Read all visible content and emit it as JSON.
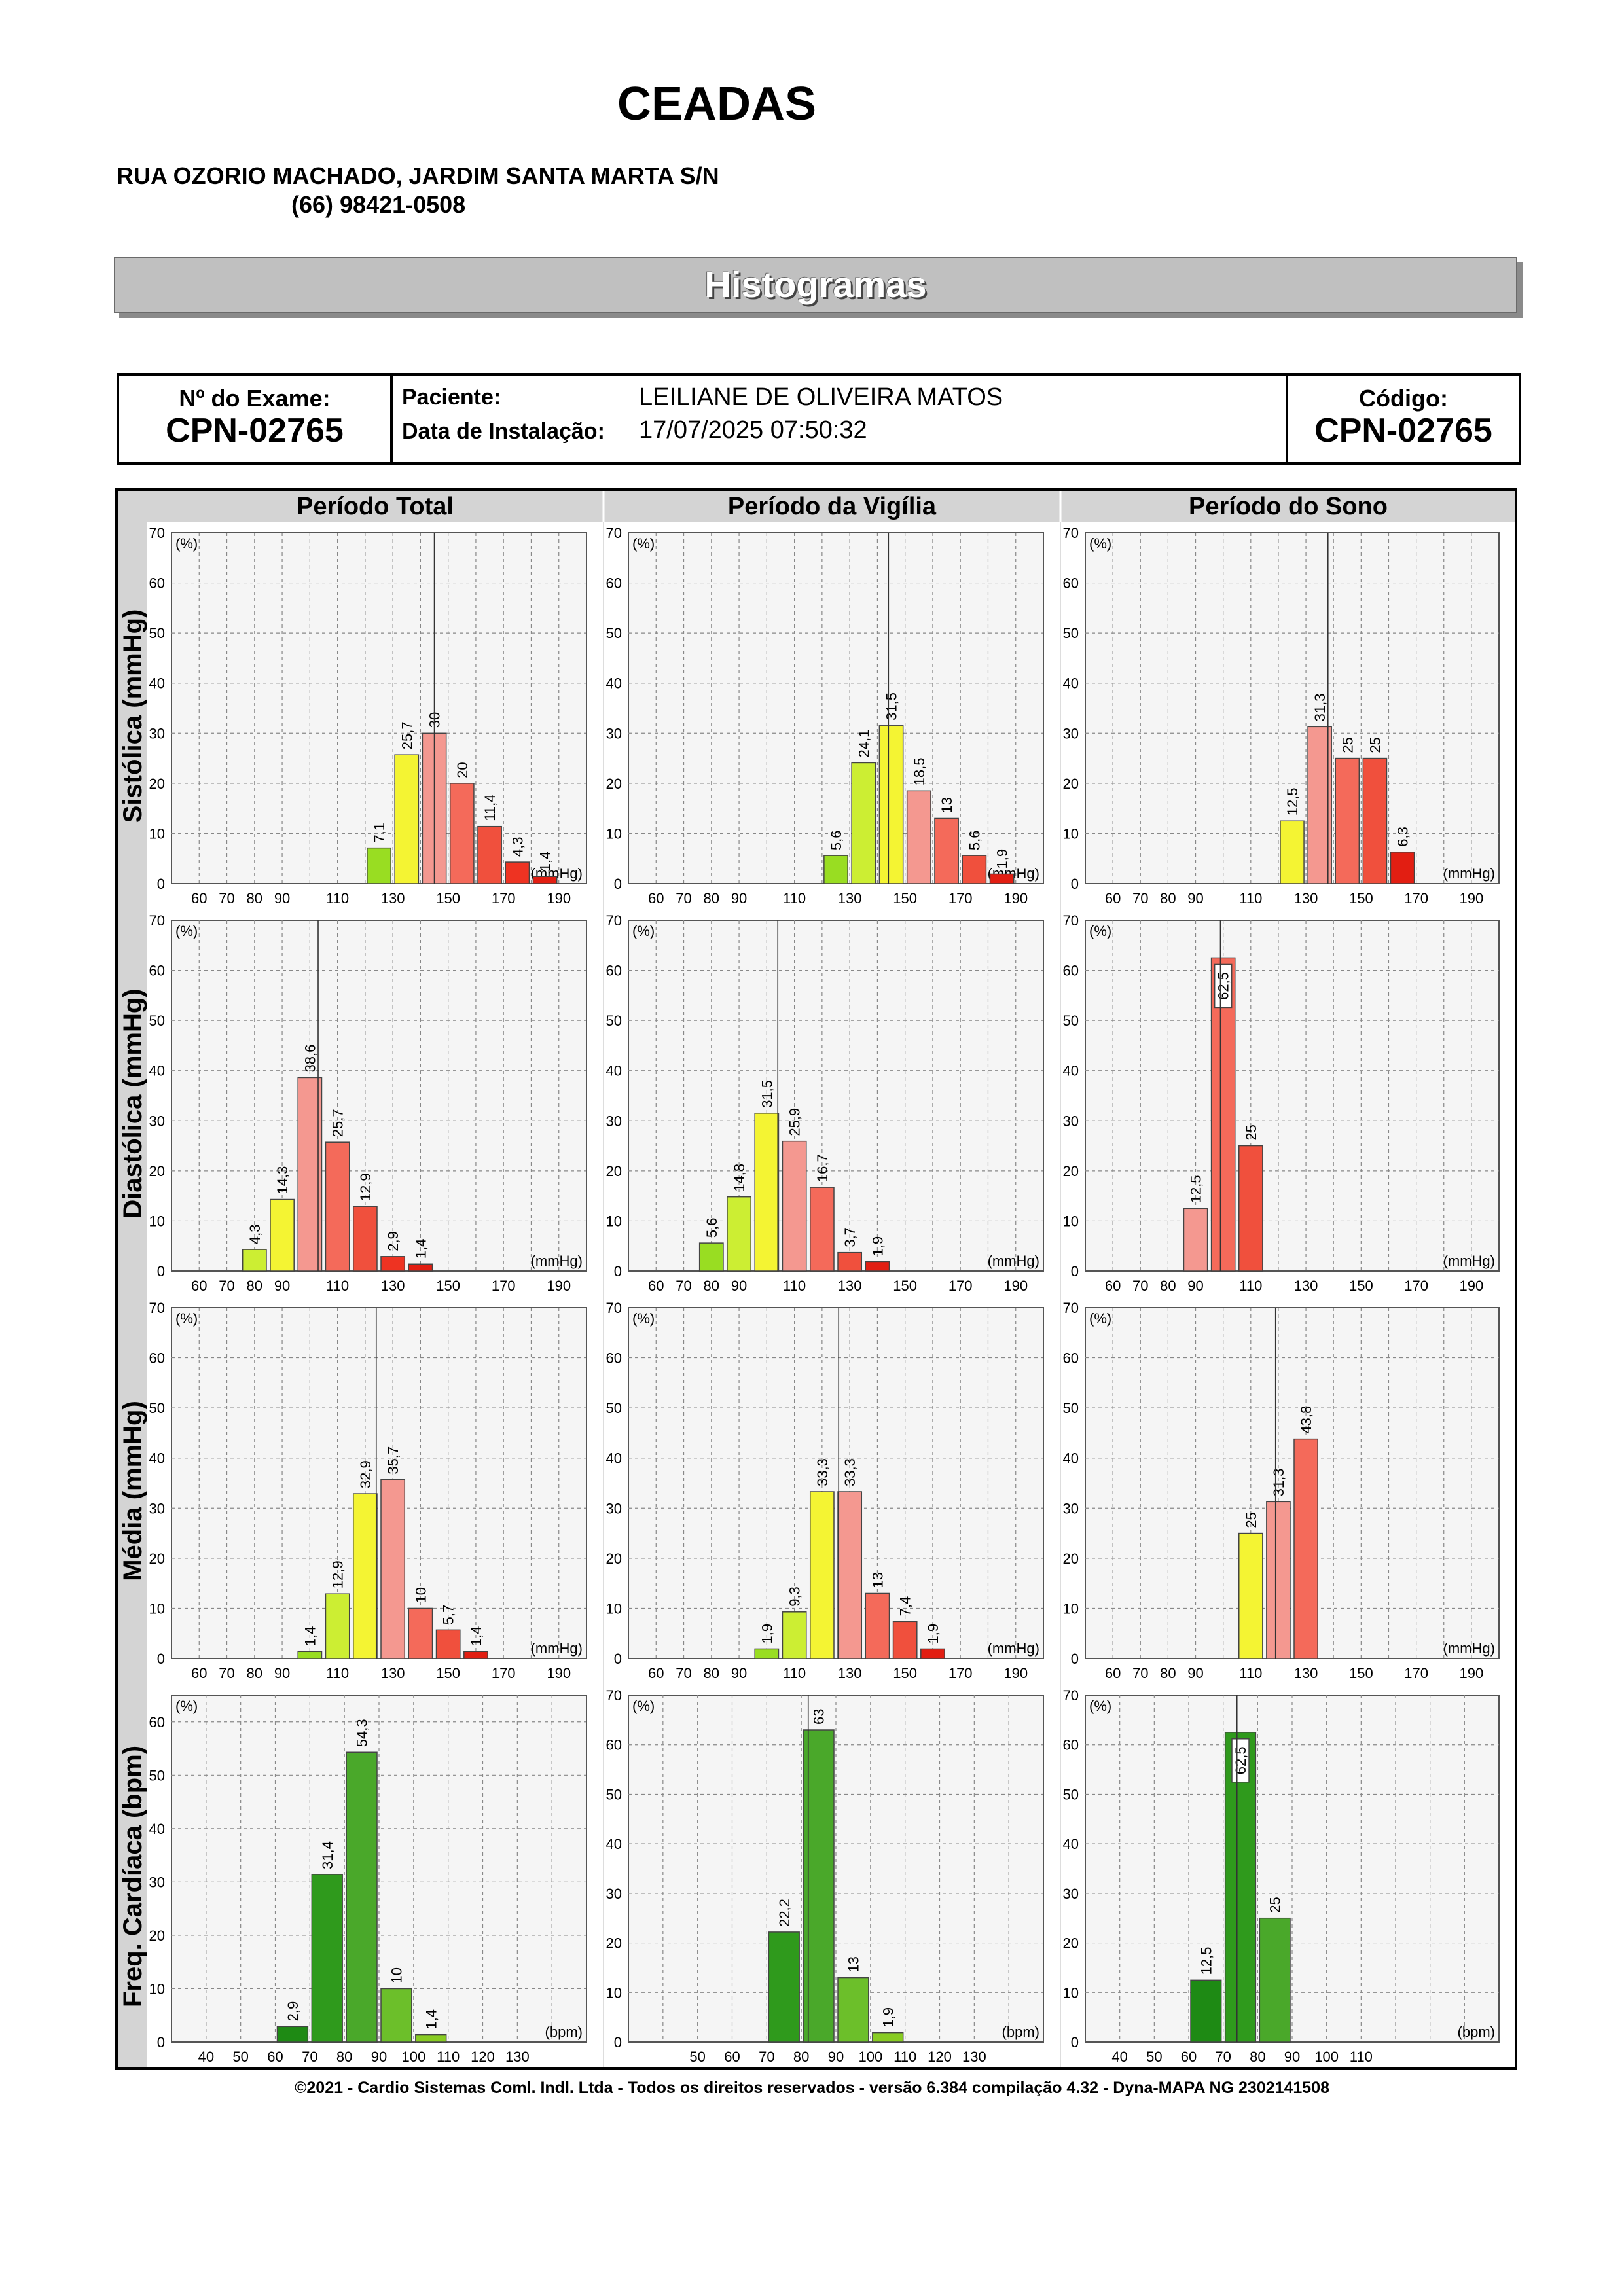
{
  "header": {
    "title": "CEADAS",
    "address": "RUA OZORIO MACHADO, JARDIM SANTA MARTA S/N",
    "phone": "(66) 98421-0508",
    "banner": "Histogramas"
  },
  "exam": {
    "exam_label": "Nº do Exame:",
    "exam_value": "CPN-02765",
    "patient_label": "Paciente:",
    "patient_value": "LEILIANE DE OLIVEIRA  MATOS",
    "install_label": "Data de Instalação:",
    "install_value": "17/07/2025 07:50:32",
    "code_label": "Código:",
    "code_value": "CPN-02765"
  },
  "columns": [
    "Período Total",
    "Período da Vigília",
    "Período do Sono"
  ],
  "rows": [
    "Sistólica (mmHg)",
    "Diastólica (mmHg)",
    "Média (mmHg)",
    "Freq. Cardíaca (bpm)"
  ],
  "chart_data": [
    {
      "type": "bar",
      "row": 0,
      "col": 0,
      "ylabel_unit": "(%)",
      "xunit": "(mmHg)",
      "ylim": [
        0,
        70
      ],
      "yticks": [
        0,
        10,
        20,
        30,
        40,
        50,
        60,
        70
      ],
      "xlim": [
        50,
        200
      ],
      "xtick_labels": [
        "60",
        "70",
        "80",
        "90",
        "110",
        "130",
        "150",
        "170",
        "190"
      ],
      "xtick_values": [
        60,
        70,
        80,
        90,
        110,
        130,
        150,
        170,
        190
      ],
      "bars": [
        {
          "x0": 120,
          "x1": 130,
          "v": 7.1,
          "label": "7,1",
          "color": "#99dd22"
        },
        {
          "x0": 130,
          "x1": 140,
          "v": 25.7,
          "label": "25,7",
          "color": "#f4f433"
        },
        {
          "x0": 140,
          "x1": 150,
          "v": 30,
          "label": "30",
          "color": "#f49890"
        },
        {
          "x0": 150,
          "x1": 160,
          "v": 20,
          "label": "20",
          "color": "#f46a5a"
        },
        {
          "x0": 160,
          "x1": 170,
          "v": 11.4,
          "label": "11,4",
          "color": "#f0503d"
        },
        {
          "x0": 170,
          "x1": 180,
          "v": 4.3,
          "label": "4,3",
          "color": "#ee3322"
        },
        {
          "x0": 180,
          "x1": 190,
          "v": 1.4,
          "label": "1,4",
          "color": "#e21e12"
        }
      ],
      "marker": 145
    },
    {
      "type": "bar",
      "row": 0,
      "col": 1,
      "ylabel_unit": "(%)",
      "xunit": "(mmHg)",
      "ylim": [
        0,
        70
      ],
      "yticks": [
        0,
        10,
        20,
        30,
        40,
        50,
        60,
        70
      ],
      "xlim": [
        50,
        200
      ],
      "xtick_labels": [
        "60",
        "70",
        "80",
        "90",
        "110",
        "130",
        "150",
        "170",
        "190"
      ],
      "xtick_values": [
        60,
        70,
        80,
        90,
        110,
        130,
        150,
        170,
        190
      ],
      "bars": [
        {
          "x0": 120,
          "x1": 130,
          "v": 5.6,
          "label": "5,6",
          "color": "#99dd22"
        },
        {
          "x0": 130,
          "x1": 140,
          "v": 24.1,
          "label": "24,1",
          "color": "#ccee33"
        },
        {
          "x0": 140,
          "x1": 150,
          "v": 31.5,
          "label": "31,5",
          "color": "#f4f433"
        },
        {
          "x0": 150,
          "x1": 160,
          "v": 18.5,
          "label": "18,5",
          "color": "#f49890"
        },
        {
          "x0": 160,
          "x1": 170,
          "v": 13,
          "label": "13",
          "color": "#f46a5a"
        },
        {
          "x0": 170,
          "x1": 180,
          "v": 5.6,
          "label": "5,6",
          "color": "#f0503d"
        },
        {
          "x0": 180,
          "x1": 190,
          "v": 1.9,
          "label": "1,9",
          "color": "#e21e12"
        }
      ],
      "marker": 144
    },
    {
      "type": "bar",
      "row": 0,
      "col": 2,
      "ylabel_unit": "(%)",
      "xunit": "(mmHg)",
      "ylim": [
        0,
        70
      ],
      "yticks": [
        0,
        10,
        20,
        30,
        40,
        50,
        60,
        70
      ],
      "xlim": [
        50,
        200
      ],
      "xtick_labels": [
        "60",
        "70",
        "80",
        "90",
        "110",
        "130",
        "150",
        "170",
        "190"
      ],
      "xtick_values": [
        60,
        70,
        80,
        90,
        110,
        130,
        150,
        170,
        190
      ],
      "bars": [
        {
          "x0": 120,
          "x1": 130,
          "v": 12.5,
          "label": "12,5",
          "color": "#f4f433"
        },
        {
          "x0": 130,
          "x1": 140,
          "v": 31.3,
          "label": "31,3",
          "color": "#f49890"
        },
        {
          "x0": 140,
          "x1": 150,
          "v": 25,
          "label": "25",
          "color": "#f46a5a"
        },
        {
          "x0": 150,
          "x1": 160,
          "v": 25,
          "label": "25",
          "color": "#f0503d"
        },
        {
          "x0": 160,
          "x1": 170,
          "v": 6.3,
          "label": "6,3",
          "color": "#e21e12"
        }
      ],
      "marker": 138
    },
    {
      "type": "bar",
      "row": 1,
      "col": 0,
      "ylabel_unit": "(%)",
      "xunit": "(mmHg)",
      "ylim": [
        0,
        70
      ],
      "yticks": [
        0,
        10,
        20,
        30,
        40,
        50,
        60,
        70
      ],
      "xlim": [
        50,
        200
      ],
      "xtick_labels": [
        "60",
        "70",
        "80",
        "90",
        "110",
        "130",
        "150",
        "170",
        "190"
      ],
      "xtick_values": [
        60,
        70,
        80,
        90,
        110,
        130,
        150,
        170,
        190
      ],
      "bars": [
        {
          "x0": 75,
          "x1": 85,
          "v": 4.3,
          "label": "4,3",
          "color": "#ccee33"
        },
        {
          "x0": 85,
          "x1": 95,
          "v": 14.3,
          "label": "14,3",
          "color": "#f4f433"
        },
        {
          "x0": 95,
          "x1": 105,
          "v": 38.6,
          "label": "38,6",
          "color": "#f49890"
        },
        {
          "x0": 105,
          "x1": 115,
          "v": 25.7,
          "label": "25,7",
          "color": "#f46a5a"
        },
        {
          "x0": 115,
          "x1": 125,
          "v": 12.9,
          "label": "12,9",
          "color": "#f0503d"
        },
        {
          "x0": 125,
          "x1": 135,
          "v": 2.9,
          "label": "2,9",
          "color": "#ee3322"
        },
        {
          "x0": 135,
          "x1": 145,
          "v": 1.4,
          "label": "1,4",
          "color": "#e21e12"
        }
      ],
      "marker": 103
    },
    {
      "type": "bar",
      "row": 1,
      "col": 1,
      "ylabel_unit": "(%)",
      "xunit": "(mmHg)",
      "ylim": [
        0,
        70
      ],
      "yticks": [
        0,
        10,
        20,
        30,
        40,
        50,
        60,
        70
      ],
      "xlim": [
        50,
        200
      ],
      "xtick_labels": [
        "60",
        "70",
        "80",
        "90",
        "110",
        "130",
        "150",
        "170",
        "190"
      ],
      "xtick_values": [
        60,
        70,
        80,
        90,
        110,
        130,
        150,
        170,
        190
      ],
      "bars": [
        {
          "x0": 75,
          "x1": 85,
          "v": 5.6,
          "label": "5,6",
          "color": "#99dd22"
        },
        {
          "x0": 85,
          "x1": 95,
          "v": 14.8,
          "label": "14,8",
          "color": "#ccee33"
        },
        {
          "x0": 95,
          "x1": 105,
          "v": 31.5,
          "label": "31,5",
          "color": "#f4f433"
        },
        {
          "x0": 105,
          "x1": 115,
          "v": 25.9,
          "label": "25,9",
          "color": "#f49890"
        },
        {
          "x0": 115,
          "x1": 125,
          "v": 16.7,
          "label": "16,7",
          "color": "#f46a5a"
        },
        {
          "x0": 125,
          "x1": 135,
          "v": 3.7,
          "label": "3,7",
          "color": "#f0503d"
        },
        {
          "x0": 135,
          "x1": 145,
          "v": 1.9,
          "label": "1,9",
          "color": "#e21e12"
        }
      ],
      "marker": 104
    },
    {
      "type": "bar",
      "row": 1,
      "col": 2,
      "ylabel_unit": "(%)",
      "xunit": "(mmHg)",
      "ylim": [
        0,
        70
      ],
      "yticks": [
        0,
        10,
        20,
        30,
        40,
        50,
        60,
        70
      ],
      "xlim": [
        50,
        200
      ],
      "xtick_labels": [
        "60",
        "70",
        "80",
        "90",
        "110",
        "130",
        "150",
        "170",
        "190"
      ],
      "xtick_values": [
        60,
        70,
        80,
        90,
        110,
        130,
        150,
        170,
        190
      ],
      "bars": [
        {
          "x0": 85,
          "x1": 95,
          "v": 12.5,
          "label": "12,5",
          "color": "#f49890"
        },
        {
          "x0": 95,
          "x1": 105,
          "v": 62.5,
          "label": "62,5",
          "color": "#f46a5a",
          "boxed": true
        },
        {
          "x0": 105,
          "x1": 115,
          "v": 25,
          "label": "25",
          "color": "#f0503d"
        }
      ],
      "marker": 99
    },
    {
      "type": "bar",
      "row": 2,
      "col": 0,
      "ylabel_unit": "(%)",
      "xunit": "(mmHg)",
      "ylim": [
        0,
        70
      ],
      "yticks": [
        0,
        10,
        20,
        30,
        40,
        50,
        60,
        70
      ],
      "xlim": [
        50,
        200
      ],
      "xtick_labels": [
        "60",
        "70",
        "80",
        "90",
        "110",
        "130",
        "150",
        "170",
        "190"
      ],
      "xtick_values": [
        60,
        70,
        80,
        90,
        110,
        130,
        150,
        170,
        190
      ],
      "bars": [
        {
          "x0": 95,
          "x1": 105,
          "v": 1.4,
          "label": "1,4",
          "color": "#99dd22"
        },
        {
          "x0": 105,
          "x1": 115,
          "v": 12.9,
          "label": "12,9",
          "color": "#ccee33"
        },
        {
          "x0": 115,
          "x1": 125,
          "v": 32.9,
          "label": "32,9",
          "color": "#f4f433"
        },
        {
          "x0": 125,
          "x1": 135,
          "v": 35.7,
          "label": "35,7",
          "color": "#f49890"
        },
        {
          "x0": 135,
          "x1": 145,
          "v": 10,
          "label": "10",
          "color": "#f46a5a"
        },
        {
          "x0": 145,
          "x1": 155,
          "v": 5.7,
          "label": "5,7",
          "color": "#f0503d"
        },
        {
          "x0": 155,
          "x1": 165,
          "v": 1.4,
          "label": "1,4",
          "color": "#e21e12"
        }
      ],
      "marker": 124
    },
    {
      "type": "bar",
      "row": 2,
      "col": 1,
      "ylabel_unit": "(%)",
      "xunit": "(mmHg)",
      "ylim": [
        0,
        70
      ],
      "yticks": [
        0,
        10,
        20,
        30,
        40,
        50,
        60,
        70
      ],
      "xlim": [
        50,
        200
      ],
      "xtick_labels": [
        "60",
        "70",
        "80",
        "90",
        "110",
        "130",
        "150",
        "170",
        "190"
      ],
      "xtick_values": [
        60,
        70,
        80,
        90,
        110,
        130,
        150,
        170,
        190
      ],
      "bars": [
        {
          "x0": 95,
          "x1": 105,
          "v": 1.9,
          "label": "1,9",
          "color": "#99dd22"
        },
        {
          "x0": 105,
          "x1": 115,
          "v": 9.3,
          "label": "9,3",
          "color": "#ccee33"
        },
        {
          "x0": 115,
          "x1": 125,
          "v": 33.3,
          "label": "33,3",
          "color": "#f4f433"
        },
        {
          "x0": 125,
          "x1": 135,
          "v": 33.3,
          "label": "33,3",
          "color": "#f49890"
        },
        {
          "x0": 135,
          "x1": 145,
          "v": 13,
          "label": "13",
          "color": "#f46a5a"
        },
        {
          "x0": 145,
          "x1": 155,
          "v": 7.4,
          "label": "7,4",
          "color": "#f0503d"
        },
        {
          "x0": 155,
          "x1": 165,
          "v": 1.9,
          "label": "1,9",
          "color": "#e21e12"
        }
      ],
      "marker": 126
    },
    {
      "type": "bar",
      "row": 2,
      "col": 2,
      "ylabel_unit": "(%)",
      "xunit": "(mmHg)",
      "ylim": [
        0,
        70
      ],
      "yticks": [
        0,
        10,
        20,
        30,
        40,
        50,
        60,
        70
      ],
      "xlim": [
        50,
        200
      ],
      "xtick_labels": [
        "60",
        "70",
        "80",
        "90",
        "110",
        "130",
        "150",
        "170",
        "190"
      ],
      "xtick_values": [
        60,
        70,
        80,
        90,
        110,
        130,
        150,
        170,
        190
      ],
      "bars": [
        {
          "x0": 105,
          "x1": 115,
          "v": 25,
          "label": "25",
          "color": "#f4f433"
        },
        {
          "x0": 115,
          "x1": 125,
          "v": 31.3,
          "label": "31,3",
          "color": "#f49890"
        },
        {
          "x0": 125,
          "x1": 135,
          "v": 43.8,
          "label": "43,8",
          "color": "#f46a5a"
        }
      ],
      "marker": 119
    },
    {
      "type": "bar",
      "row": 3,
      "col": 0,
      "ylabel_unit": "(%)",
      "xunit": "(bpm)",
      "ylim": [
        0,
        65
      ],
      "yticks": [
        0,
        10,
        20,
        30,
        40,
        50,
        60
      ],
      "xlim": [
        30,
        150
      ],
      "xtick_labels": [
        "40",
        "50",
        "60",
        "70",
        "80",
        "90",
        "100",
        "110",
        "120",
        "130"
      ],
      "xtick_values": [
        40,
        50,
        60,
        70,
        80,
        90,
        100,
        110,
        120,
        130
      ],
      "bars": [
        {
          "x0": 60,
          "x1": 70,
          "v": 2.9,
          "label": "2,9",
          "color": "#1e8a14"
        },
        {
          "x0": 70,
          "x1": 80,
          "v": 31.4,
          "label": "31,4",
          "color": "#2f9a1c"
        },
        {
          "x0": 80,
          "x1": 90,
          "v": 54.3,
          "label": "54,3",
          "color": "#4aa82a"
        },
        {
          "x0": 90,
          "x1": 100,
          "v": 10,
          "label": "10",
          "color": "#6cbf2a"
        },
        {
          "x0": 100,
          "x1": 110,
          "v": 1.4,
          "label": "1,4",
          "color": "#88cc22"
        }
      ]
    },
    {
      "type": "bar",
      "row": 3,
      "col": 1,
      "ylabel_unit": "(%)",
      "xunit": "(bpm)",
      "ylim": [
        0,
        70
      ],
      "yticks": [
        0,
        10,
        20,
        30,
        40,
        50,
        60,
        70
      ],
      "xlim": [
        30,
        150
      ],
      "xtick_labels": [
        "50",
        "60",
        "70",
        "80",
        "90",
        "100",
        "110",
        "120",
        "130"
      ],
      "xtick_values": [
        50,
        60,
        70,
        80,
        90,
        100,
        110,
        120,
        130
      ],
      "bars": [
        {
          "x0": 70,
          "x1": 80,
          "v": 22.2,
          "label": "22,2",
          "color": "#2f9a1c"
        },
        {
          "x0": 80,
          "x1": 90,
          "v": 63,
          "label": "63",
          "color": "#4aa82a"
        },
        {
          "x0": 90,
          "x1": 100,
          "v": 13,
          "label": "13",
          "color": "#6cbf2a"
        },
        {
          "x0": 100,
          "x1": 110,
          "v": 1.9,
          "label": "1,9",
          "color": "#88cc22"
        }
      ],
      "marker": 82
    },
    {
      "type": "bar",
      "row": 3,
      "col": 2,
      "ylabel_unit": "(%)",
      "xunit": "(bpm)",
      "ylim": [
        0,
        70
      ],
      "yticks": [
        0,
        10,
        20,
        30,
        40,
        50,
        60,
        70
      ],
      "xlim": [
        30,
        150
      ],
      "xtick_labels": [
        "40",
        "50",
        "60",
        "70",
        "80",
        "90",
        "100",
        "110"
      ],
      "xtick_values": [
        40,
        50,
        60,
        70,
        80,
        90,
        100,
        110
      ],
      "bars": [
        {
          "x0": 60,
          "x1": 70,
          "v": 12.5,
          "label": "12,5",
          "color": "#1e8a14"
        },
        {
          "x0": 70,
          "x1": 80,
          "v": 62.5,
          "label": "62,5",
          "color": "#2f9a1c",
          "boxed": true
        },
        {
          "x0": 80,
          "x1": 90,
          "v": 25,
          "label": "25",
          "color": "#4aa82a"
        }
      ],
      "marker": 74
    }
  ],
  "footer": "©2021 - Cardio Sistemas Coml. Indl. Ltda - Todos os direitos reservados - versão 6.384 compilação 4.32 - Dyna-MAPA NG 2302141508"
}
